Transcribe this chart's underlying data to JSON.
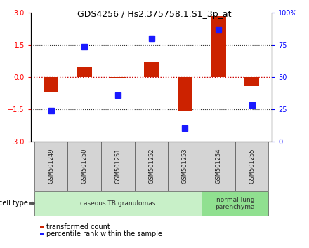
{
  "title": "GDS4256 / Hs2.375758.1.S1_3p_at",
  "samples": [
    "GSM501249",
    "GSM501250",
    "GSM501251",
    "GSM501252",
    "GSM501253",
    "GSM501254",
    "GSM501255"
  ],
  "transformed_count": [
    -0.72,
    0.48,
    -0.05,
    0.68,
    -1.6,
    2.82,
    -0.42
  ],
  "percentile_rank": [
    24,
    73,
    36,
    80,
    10,
    87,
    28
  ],
  "ylim_left": [
    -3,
    3
  ],
  "ylim_right": [
    0,
    100
  ],
  "yticks_left": [
    -3,
    -1.5,
    0,
    1.5,
    3
  ],
  "yticks_right": [
    0,
    25,
    50,
    75,
    100
  ],
  "ytick_labels_right": [
    "0",
    "25",
    "50",
    "75",
    "100%"
  ],
  "bar_color": "#cc2200",
  "marker_color": "#1a1aff",
  "dotted_line_color": "#333333",
  "red_dotted_color": "#cc0000",
  "cell_groups": [
    {
      "label": "caseous TB granulomas",
      "start": 0,
      "end": 4,
      "color": "#c8f0c8"
    },
    {
      "label": "normal lung\nparenchyma",
      "start": 5,
      "end": 6,
      "color": "#90e090"
    }
  ],
  "legend_items": [
    {
      "color": "#cc2200",
      "label": "transformed count"
    },
    {
      "color": "#1a1aff",
      "label": "percentile rank within the sample"
    }
  ],
  "cell_type_label": "cell type",
  "bar_width": 0.45,
  "marker_size": 6,
  "sample_box_color": "#d4d4d4",
  "title_fontsize": 9,
  "axis_fontsize": 7,
  "label_fontsize": 7,
  "legend_fontsize": 7
}
